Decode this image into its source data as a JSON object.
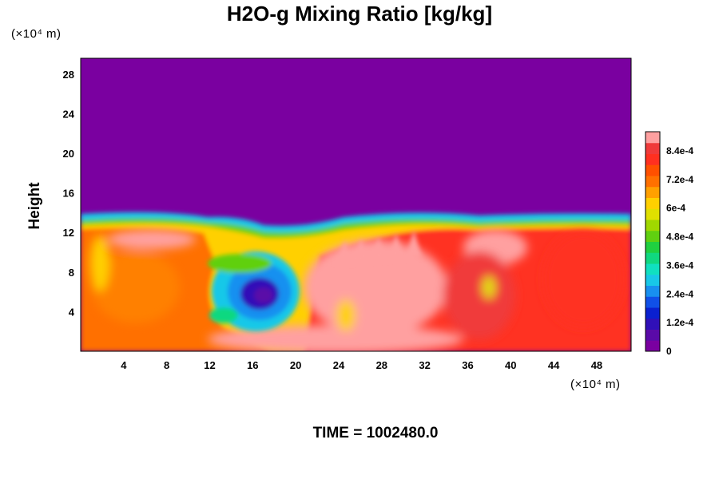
{
  "chart_data": {
    "type": "heatmap",
    "title": "H2O-g Mixing Ratio [kg/kg]",
    "ylabel": "Height",
    "x_unit": "(×10⁴ m)",
    "y_unit": "(×10⁴ m)",
    "x_ticks": [
      "4",
      "8",
      "12",
      "16",
      "20",
      "24",
      "28",
      "32",
      "36",
      "40",
      "44",
      "48"
    ],
    "y_ticks": [
      "4",
      "8",
      "12",
      "16",
      "20",
      "24",
      "28"
    ],
    "xlim": [
      0,
      51.2
    ],
    "ylim": [
      0,
      29.6
    ],
    "colorbar": {
      "min": 0,
      "max": 0.00092,
      "tick_labels": [
        "0",
        "1.2e-4",
        "2.4e-4",
        "3.6e-4",
        "4.8e-4",
        "6e-4",
        "7.2e-4",
        "8.4e-4"
      ],
      "colors": [
        "#7a00a0",
        "#5a0aa8",
        "#3010b8",
        "#0a20d0",
        "#1050e8",
        "#1890f0",
        "#18c8e8",
        "#10e0c0",
        "#10d880",
        "#20d040",
        "#60d010",
        "#a0d800",
        "#e0e000",
        "#ffd000",
        "#ffa000",
        "#ff7000",
        "#ff5000",
        "#ff3020",
        "#f03a3a",
        "#ffa0a0"
      ]
    },
    "field_description": "dry upper layer (0) above ~14; moist layer below with values up to ~9.2e-4"
  },
  "time_label": "TIME = 1002480.0"
}
